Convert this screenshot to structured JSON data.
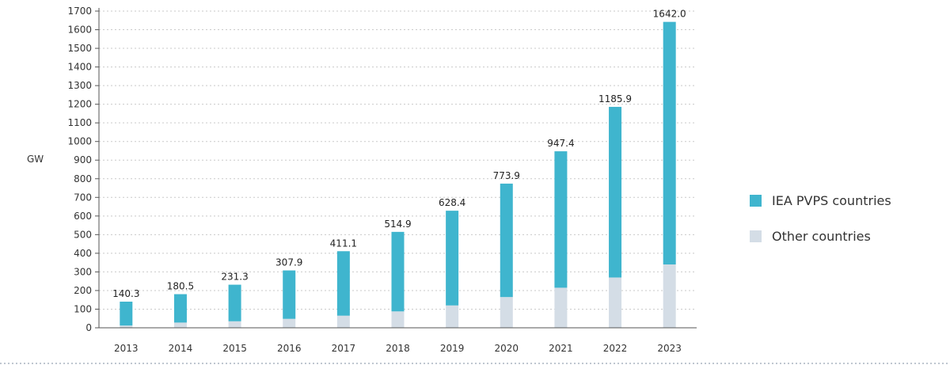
{
  "chart_data": {
    "type": "bar",
    "stacked": true,
    "title": "",
    "xlabel": "",
    "ylabel": "GW",
    "ylim": [
      0,
      1700
    ],
    "ytick_step": 100,
    "grid": "horizontal-dashed",
    "legend_position": "right",
    "categories": [
      "2013",
      "2014",
      "2015",
      "2016",
      "2017",
      "2018",
      "2019",
      "2020",
      "2021",
      "2022",
      "2023"
    ],
    "series": [
      {
        "name": "Other countries",
        "color": "#d4dde6",
        "values": [
          12,
          28,
          35,
          48,
          65,
          88,
          120,
          165,
          215,
          270,
          340
        ]
      },
      {
        "name": "IEA PVPS countries",
        "color": "#3fb5ce",
        "values": [
          128.3,
          152.5,
          196.3,
          259.9,
          346.1,
          426.9,
          508.4,
          608.9,
          732.4,
          915.9,
          1302.0
        ]
      }
    ],
    "totals": [
      "140.3",
      "180.5",
      "231.3",
      "307.9",
      "411.1",
      "514.9",
      "628.4",
      "773.9",
      "947.4",
      "1185.9",
      "1642.0"
    ],
    "total_values": [
      140.3,
      180.5,
      231.3,
      307.9,
      411.1,
      514.9,
      628.4,
      773.9,
      947.4,
      1185.9,
      1642.0
    ],
    "legend": [
      "IEA PVPS countries",
      "Other countries"
    ]
  }
}
